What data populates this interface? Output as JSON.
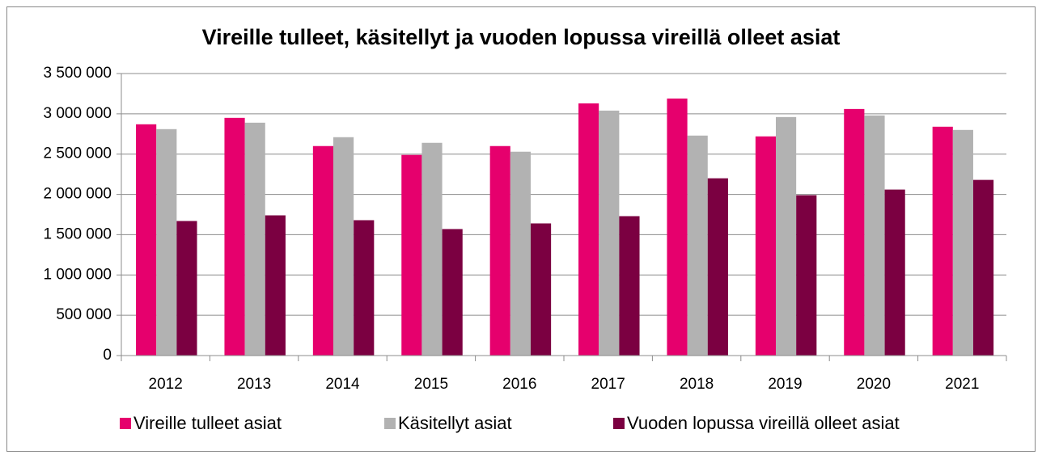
{
  "chart_data": {
    "type": "bar",
    "title": "Vireille tulleet, käsitellyt ja vuoden lopussa vireillä olleet asiat",
    "categories": [
      "2012",
      "2013",
      "2014",
      "2015",
      "2016",
      "2017",
      "2018",
      "2019",
      "2020",
      "2021"
    ],
    "series": [
      {
        "name": "Vireille tulleet asiat",
        "color": "#e6006d",
        "values": [
          2870000,
          2950000,
          2600000,
          2490000,
          2600000,
          3130000,
          3190000,
          2720000,
          3060000,
          2840000
        ]
      },
      {
        "name": "Käsitellyt asiat",
        "color": "#b2b2b2",
        "values": [
          2810000,
          2890000,
          2710000,
          2640000,
          2530000,
          3040000,
          2730000,
          2960000,
          2980000,
          2800000
        ]
      },
      {
        "name": "Vuoden lopussa vireillä olleet asiat",
        "color": "#7b0041",
        "values": [
          1670000,
          1740000,
          1680000,
          1570000,
          1640000,
          1730000,
          2200000,
          1990000,
          2060000,
          2180000
        ]
      }
    ],
    "ylim": [
      0,
      3500000
    ],
    "yticks": [
      0,
      {
        "value": 500000,
        "label": "500 000"
      },
      {
        "value": 1000000,
        "label": "1 000 000"
      },
      {
        "value": 1500000,
        "label": "1 500 000"
      },
      {
        "value": 2000000,
        "label": "2 000 000"
      },
      {
        "value": 2500000,
        "label": "2 500 000"
      },
      {
        "value": 3000000,
        "label": "3 000 000"
      },
      {
        "value": 3500000,
        "label": "3 500 000"
      }
    ],
    "grid": true,
    "legend": "bottom"
  }
}
